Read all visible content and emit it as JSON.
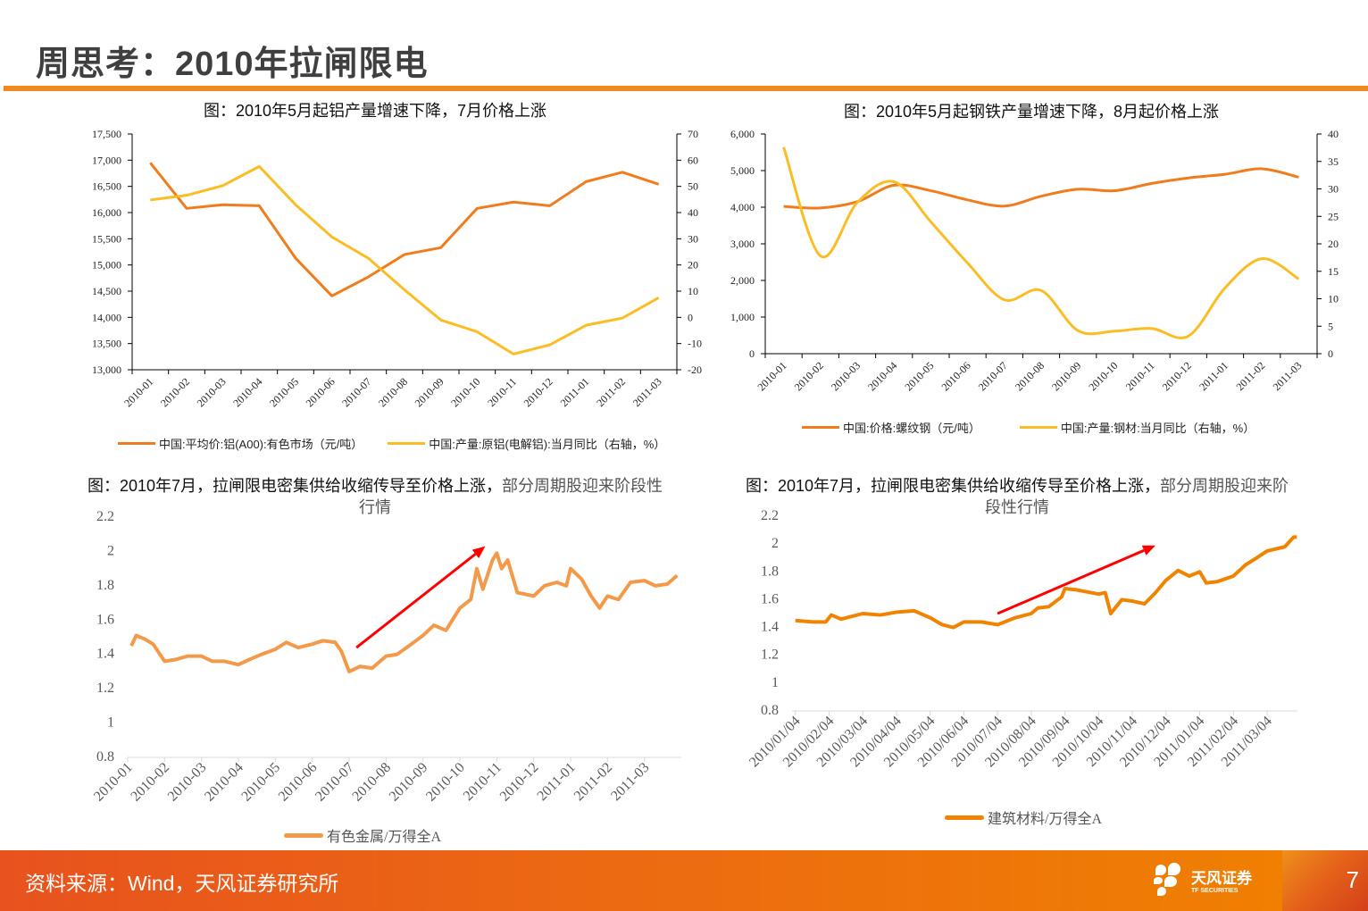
{
  "header": {
    "title": "周思考：2010年拉闸限电"
  },
  "footer": {
    "source": "资料来源：Wind，天风证券研究所",
    "logo_text": "天风证券",
    "logo_sub": "TF SECURITIES",
    "page": "7"
  },
  "colors": {
    "accent": "#f08a1e",
    "arrow": "#ff0000"
  },
  "chart_data": [
    {
      "type": "line",
      "title": "图：2010年5月起铝产量增速下降，7月价格上涨",
      "categories": [
        "2010-01",
        "2010-02",
        "2010-03",
        "2010-04",
        "2010-05",
        "2010-06",
        "2010-07",
        "2010-08",
        "2010-09",
        "2010-10",
        "2010-11",
        "2010-12",
        "2011-01",
        "2011-02",
        "2011-03"
      ],
      "ylim": [
        13000,
        17500
      ],
      "yticks": [
        "13,000",
        "13,500",
        "14,000",
        "14,500",
        "15,000",
        "15,500",
        "16,000",
        "16,500",
        "17,000",
        "17,500"
      ],
      "y2lim": [
        -20,
        70
      ],
      "y2ticks": [
        "-20",
        "-10",
        "0",
        "10",
        "20",
        "30",
        "40",
        "50",
        "60",
        "70"
      ],
      "legend": "bottom",
      "grid": false,
      "series": [
        {
          "name": "中国:平均价:铝(A00):有色市场（元/吨）",
          "axis": "left",
          "color": "#f07c1e",
          "values": [
            16950,
            16080,
            16150,
            16130,
            15130,
            14410,
            14770,
            15200,
            15330,
            16080,
            16200,
            16130,
            16590,
            16770,
            16540
          ]
        },
        {
          "name": "中国:产量:原铝(电解铝):当月同比（右轴，%）",
          "axis": "right",
          "color": "#fbbd25",
          "values": [
            44.8,
            46.6,
            50.3,
            57.6,
            43.0,
            30.7,
            22.6,
            10.5,
            -1.0,
            -5.5,
            -14.0,
            -10.5,
            -3.0,
            -0.3,
            7.5
          ]
        }
      ]
    },
    {
      "type": "line",
      "title": "图：2010年5月起钢铁产量增速下降，8月起价格上涨",
      "categories": [
        "2010-01",
        "2010-02",
        "2010-03",
        "2010-04",
        "2010-05",
        "2010-06",
        "2010-07",
        "2010-08",
        "2010-09",
        "2010-10",
        "2010-11",
        "2010-12",
        "2011-01",
        "2011-02",
        "2011-03"
      ],
      "ylim": [
        0,
        6000
      ],
      "yticks": [
        "0",
        "1,000",
        "2,000",
        "3,000",
        "4,000",
        "5,000",
        "6,000"
      ],
      "y2lim": [
        0,
        40
      ],
      "y2ticks": [
        "0",
        "5",
        "10",
        "15",
        "20",
        "25",
        "30",
        "35",
        "40"
      ],
      "legend": "bottom",
      "grid": false,
      "series": [
        {
          "name": "中国:价格:螺纹钢（元/吨）",
          "axis": "left",
          "color": "#f07c1e",
          "values": [
            4020,
            3980,
            4150,
            4600,
            4450,
            4200,
            4030,
            4300,
            4490,
            4450,
            4650,
            4800,
            4900,
            5050,
            4820
          ]
        },
        {
          "name": "中国:产量:钢材:当月同比（右轴，%）",
          "axis": "right",
          "color": "#fbbd25",
          "values": [
            37.6,
            17.8,
            27.5,
            31.3,
            24.0,
            16.5,
            9.8,
            11.5,
            4.2,
            4.1,
            4.6,
            3.2,
            12.0,
            17.3,
            13.6
          ]
        }
      ]
    },
    {
      "type": "line",
      "title": "图：2010年7月，拉闸限电密集供给收缩传导至价格上涨，",
      "title_highlight": "部分周期股迎来阶段性行情",
      "xticks": [
        "2010-01",
        "2010-02",
        "2010-03",
        "2010-04",
        "2010-05",
        "2010-06",
        "2010-07",
        "2010-08",
        "2010-09",
        "2010-10",
        "2010-11",
        "2010-12",
        "2011-01",
        "2011-02",
        "2011-03"
      ],
      "ylim": [
        0.8,
        2.2
      ],
      "yticks": [
        "0.8",
        "1",
        "1.2",
        "1.4",
        "1.6",
        "1.8",
        "2",
        "2.2"
      ],
      "legend": "bottom",
      "grid": false,
      "annotations": [
        {
          "type": "arrow",
          "from": [
            "2010-07-07",
            1.44
          ],
          "to": [
            "2010-10-22",
            2.03
          ]
        }
      ],
      "series": [
        {
          "name": "有色金属/万得全A",
          "color": "#f39a4a",
          "points": [
            [
              "2010-01-04",
              1.45
            ],
            [
              "2010-01-08",
              1.51
            ],
            [
              "2010-01-15",
              1.49
            ],
            [
              "2010-01-22",
              1.46
            ],
            [
              "2010-02-01",
              1.36
            ],
            [
              "2010-02-10",
              1.37
            ],
            [
              "2010-02-20",
              1.39
            ],
            [
              "2010-03-01",
              1.39
            ],
            [
              "2010-03-10",
              1.36
            ],
            [
              "2010-03-20",
              1.36
            ],
            [
              "2010-04-01",
              1.34
            ],
            [
              "2010-04-10",
              1.37
            ],
            [
              "2010-04-20",
              1.4
            ],
            [
              "2010-05-01",
              1.43
            ],
            [
              "2010-05-10",
              1.47
            ],
            [
              "2010-05-20",
              1.44
            ],
            [
              "2010-06-01",
              1.46
            ],
            [
              "2010-06-10",
              1.48
            ],
            [
              "2010-06-20",
              1.47
            ],
            [
              "2010-06-25",
              1.42
            ],
            [
              "2010-07-01",
              1.3
            ],
            [
              "2010-07-10",
              1.33
            ],
            [
              "2010-07-20",
              1.32
            ],
            [
              "2010-08-01",
              1.39
            ],
            [
              "2010-08-10",
              1.4
            ],
            [
              "2010-08-20",
              1.45
            ],
            [
              "2010-09-01",
              1.51
            ],
            [
              "2010-09-10",
              1.57
            ],
            [
              "2010-09-20",
              1.54
            ],
            [
              "2010-10-01",
              1.67
            ],
            [
              "2010-10-10",
              1.72
            ],
            [
              "2010-10-15",
              1.9
            ],
            [
              "2010-10-20",
              1.78
            ],
            [
              "2010-10-28",
              1.95
            ],
            [
              "2010-11-01",
              1.99
            ],
            [
              "2010-11-05",
              1.9
            ],
            [
              "2010-11-10",
              1.95
            ],
            [
              "2010-11-18",
              1.76
            ],
            [
              "2010-11-25",
              1.75
            ],
            [
              "2010-12-01",
              1.74
            ],
            [
              "2010-12-10",
              1.8
            ],
            [
              "2010-12-20",
              1.82
            ],
            [
              "2010-12-28",
              1.8
            ],
            [
              "2011-01-01",
              1.9
            ],
            [
              "2011-01-10",
              1.84
            ],
            [
              "2011-01-18",
              1.74
            ],
            [
              "2011-01-25",
              1.67
            ],
            [
              "2011-02-01",
              1.74
            ],
            [
              "2011-02-10",
              1.72
            ],
            [
              "2011-02-20",
              1.82
            ],
            [
              "2011-03-01",
              1.83
            ],
            [
              "2011-03-10",
              1.8
            ],
            [
              "2011-03-20",
              1.81
            ],
            [
              "2011-03-28",
              1.86
            ]
          ]
        }
      ]
    },
    {
      "type": "line",
      "title": "图：2010年7月，拉闸限电密集供给收缩传导至价格上涨，",
      "title_highlight": "部分周期股迎来阶段性行情",
      "xticks": [
        "2010/01/04",
        "2010/02/04",
        "2010/03/04",
        "2010/04/04",
        "2010/05/04",
        "2010/06/04",
        "2010/07/04",
        "2010/08/04",
        "2010/09/04",
        "2010/10/04",
        "2010/11/04",
        "2010/12/04",
        "2011/01/04",
        "2011/02/04",
        "2011/03/04"
      ],
      "ylim": [
        0.8,
        2.2
      ],
      "yticks": [
        "0.8",
        "1",
        "1.2",
        "1.4",
        "1.6",
        "1.8",
        "2",
        "2.2"
      ],
      "legend": "bottom",
      "grid": false,
      "annotations": [
        {
          "type": "arrow",
          "from": [
            "2010-07-04",
            1.5
          ],
          "to": [
            "2010-11-25",
            1.99
          ]
        }
      ],
      "series": [
        {
          "name": "建筑材料/万得全A",
          "color": "#f08300",
          "points": [
            [
              "2010-01-04",
              1.45
            ],
            [
              "2010-01-20",
              1.44
            ],
            [
              "2010-02-01",
              1.44
            ],
            [
              "2010-02-06",
              1.49
            ],
            [
              "2010-02-15",
              1.46
            ],
            [
              "2010-03-04",
              1.5
            ],
            [
              "2010-03-20",
              1.49
            ],
            [
              "2010-04-04",
              1.51
            ],
            [
              "2010-04-20",
              1.52
            ],
            [
              "2010-05-04",
              1.47
            ],
            [
              "2010-05-15",
              1.42
            ],
            [
              "2010-05-25",
              1.4
            ],
            [
              "2010-06-04",
              1.44
            ],
            [
              "2010-06-20",
              1.44
            ],
            [
              "2010-07-04",
              1.42
            ],
            [
              "2010-07-20",
              1.47
            ],
            [
              "2010-08-04",
              1.5
            ],
            [
              "2010-08-10",
              1.54
            ],
            [
              "2010-08-20",
              1.55
            ],
            [
              "2010-09-01",
              1.62
            ],
            [
              "2010-09-04",
              1.68
            ],
            [
              "2010-09-15",
              1.67
            ],
            [
              "2010-10-04",
              1.64
            ],
            [
              "2010-10-10",
              1.65
            ],
            [
              "2010-10-15",
              1.5
            ],
            [
              "2010-10-25",
              1.6
            ],
            [
              "2010-11-04",
              1.59
            ],
            [
              "2010-11-15",
              1.57
            ],
            [
              "2010-11-25",
              1.65
            ],
            [
              "2010-12-04",
              1.74
            ],
            [
              "2010-12-15",
              1.81
            ],
            [
              "2010-12-25",
              1.77
            ],
            [
              "2011-01-04",
              1.8
            ],
            [
              "2011-01-10",
              1.72
            ],
            [
              "2011-01-20",
              1.73
            ],
            [
              "2011-02-04",
              1.77
            ],
            [
              "2011-02-15",
              1.85
            ],
            [
              "2011-02-25",
              1.9
            ],
            [
              "2011-03-04",
              1.95
            ],
            [
              "2011-03-20",
              1.98
            ],
            [
              "2011-03-28",
              2.05
            ],
            [
              "2011-03-31",
              2.05
            ]
          ]
        }
      ]
    }
  ]
}
